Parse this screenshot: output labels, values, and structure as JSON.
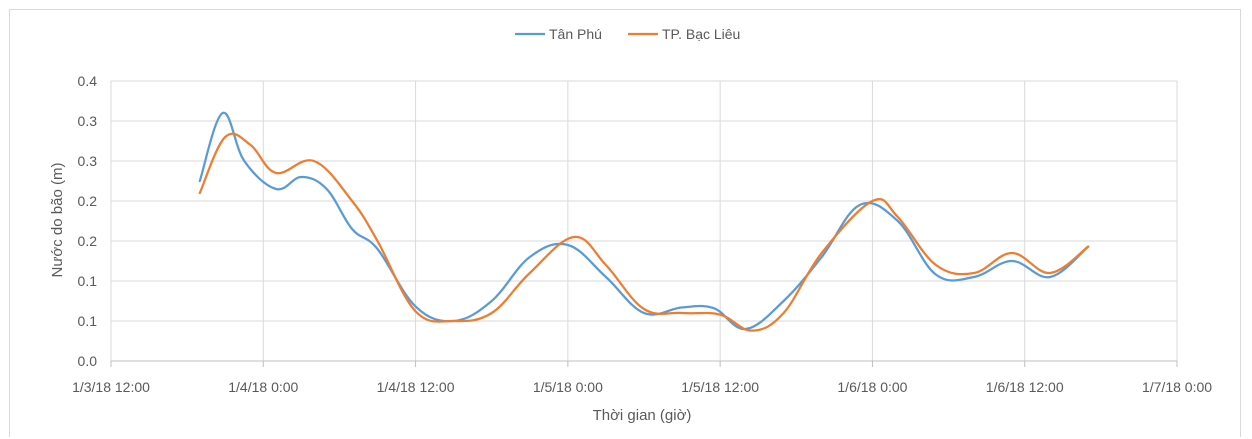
{
  "chart_data": {
    "type": "line",
    "title": "",
    "xlabel": "Thời gian (giờ)",
    "ylabel": "Nước do bão (m)",
    "legend_position": "top-center",
    "grid": true,
    "x_tick_labels": [
      "1/3/18 12:00",
      "1/4/18 0:00",
      "1/4/18 12:00",
      "1/5/18 0:00",
      "1/5/18 12:00",
      "1/6/18 0:00",
      "1/6/18 12:00",
      "1/7/18 0:00"
    ],
    "x_tick_hours": [
      0,
      12,
      24,
      36,
      48,
      60,
      72,
      84
    ],
    "x_range_hours": [
      0,
      84
    ],
    "y_tick_labels": [
      "0.0",
      "0.1",
      "0.1",
      "0.2",
      "0.2",
      "0.3",
      "0.3",
      "0.4"
    ],
    "ylim": [
      0,
      0.35
    ],
    "series": [
      {
        "name": "Tân Phú",
        "color": "#5b9bd5",
        "x_hours": [
          7,
          8.8,
          10.5,
          13,
          15,
          17,
          19,
          21,
          24,
          27,
          30,
          33,
          36,
          39,
          42,
          45,
          47.5,
          50,
          53,
          56,
          59,
          62,
          65,
          68,
          71,
          74,
          77
        ],
        "y": [
          0.225,
          0.31,
          0.25,
          0.215,
          0.23,
          0.215,
          0.165,
          0.14,
          0.068,
          0.05,
          0.075,
          0.13,
          0.145,
          0.105,
          0.06,
          0.067,
          0.066,
          0.04,
          0.075,
          0.13,
          0.195,
          0.175,
          0.108,
          0.105,
          0.125,
          0.105,
          0.143
        ]
      },
      {
        "name": "TP. Bạc Liêu",
        "color": "#ed7d31",
        "x_hours": [
          7,
          9,
          11,
          13,
          16,
          19,
          21,
          24,
          27,
          30,
          33,
          36.5,
          39,
          42,
          45,
          48,
          50.5,
          53,
          56,
          60,
          62,
          65,
          68,
          71,
          74,
          77
        ],
        "y": [
          0.21,
          0.28,
          0.27,
          0.235,
          0.25,
          0.2,
          0.15,
          0.062,
          0.05,
          0.06,
          0.11,
          0.155,
          0.12,
          0.065,
          0.06,
          0.058,
          0.038,
          0.06,
          0.135,
          0.2,
          0.18,
          0.12,
          0.11,
          0.135,
          0.11,
          0.143
        ]
      }
    ]
  }
}
